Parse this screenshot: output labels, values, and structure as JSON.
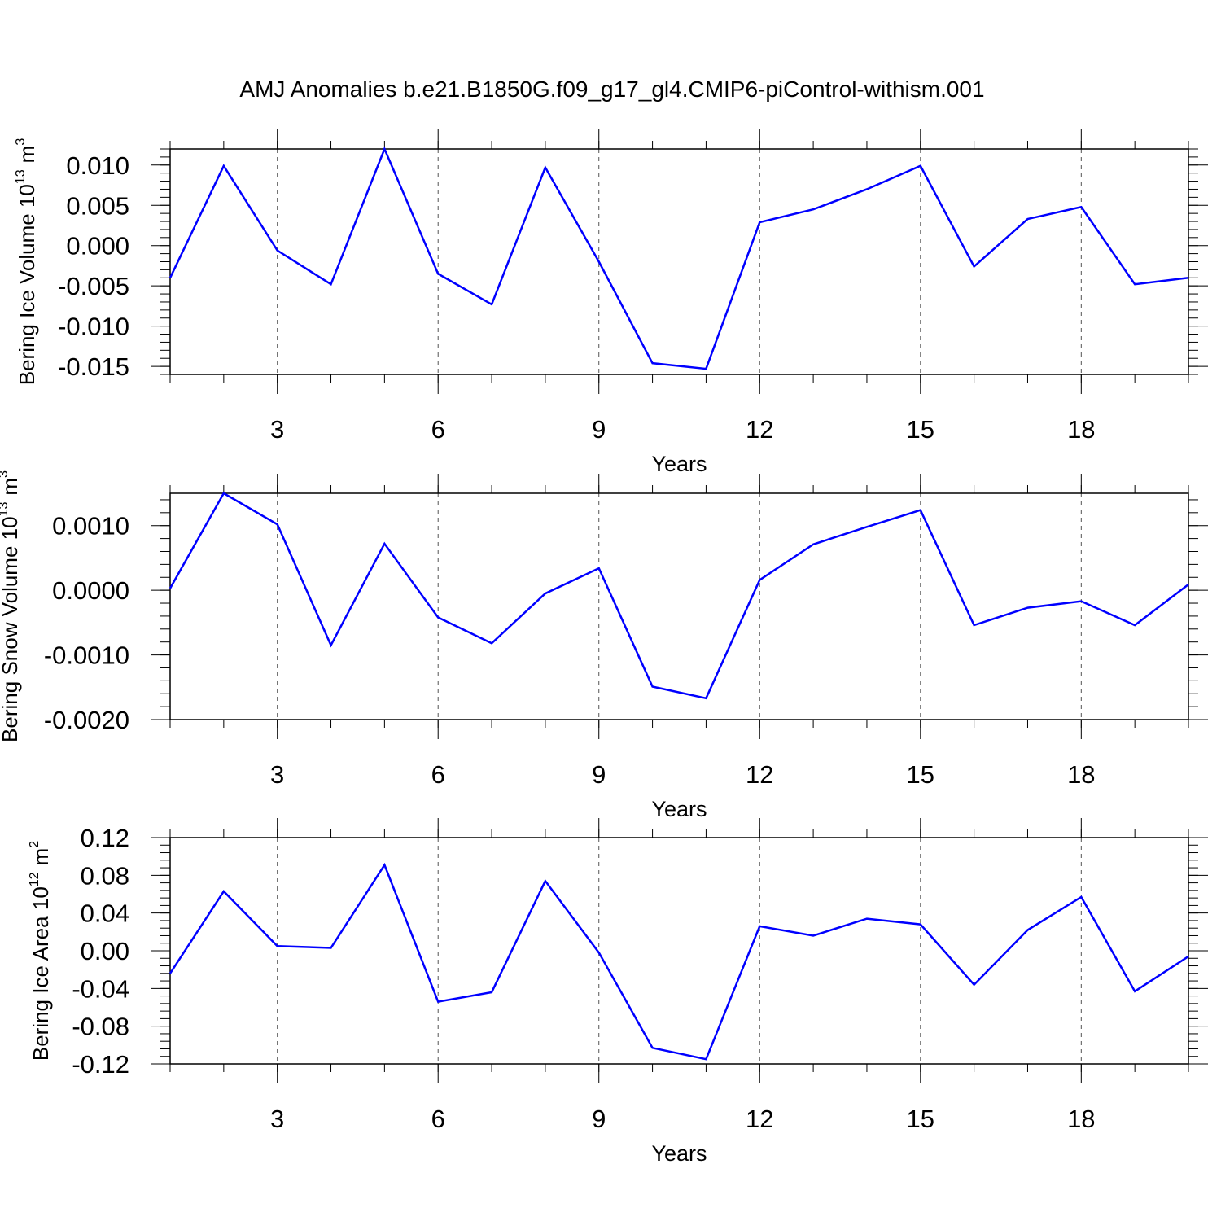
{
  "chart_data": [
    {
      "type": "line",
      "title": "AMJ Anomalies b.e21.B1850G.f09_g17_gl4.CMIP6-piControl-withism.001",
      "ylabel": [
        "Bering Ice Volume 10",
        "13",
        "m",
        "3"
      ],
      "xlabel": "Years",
      "x": [
        1,
        2,
        3,
        4,
        5,
        6,
        7,
        8,
        9,
        10,
        11,
        12,
        13,
        14,
        15,
        16,
        17,
        18,
        19,
        20
      ],
      "values": [
        -0.004,
        0.0099,
        -0.0006,
        -0.0048,
        0.012,
        -0.0035,
        -0.0073,
        0.0097,
        -0.002,
        -0.0146,
        -0.0153,
        0.0029,
        0.0045,
        0.007,
        0.0099,
        -0.0026,
        0.0033,
        0.0048,
        -0.0048,
        -0.004
      ],
      "color": "#0000ff",
      "xlim": [
        1,
        20
      ],
      "xticks": [
        3,
        6,
        9,
        12,
        15,
        18
      ],
      "ylim": [
        -0.016,
        0.012
      ],
      "yticks": [
        {
          "value": 0.01,
          "label": "0.010"
        },
        {
          "value": 0.005,
          "label": "0.005"
        },
        {
          "value": 0,
          "label": "0.000"
        },
        {
          "value": -0.005,
          "label": "-0.005"
        },
        {
          "value": -0.01,
          "label": "-0.010"
        },
        {
          "value": -0.015,
          "label": "-0.015"
        }
      ],
      "grid": true
    },
    {
      "type": "line",
      "ylabel": [
        "Bering Snow Volume 10",
        "13",
        "m",
        "3"
      ],
      "xlabel": "Years",
      "x": [
        1,
        2,
        3,
        4,
        5,
        6,
        7,
        8,
        9,
        10,
        11,
        12,
        13,
        14,
        15,
        16,
        17,
        18,
        19,
        20
      ],
      "values": [
        3e-05,
        0.0015,
        0.00102,
        -0.00085,
        0.00072,
        -0.00042,
        -0.00082,
        -5e-05,
        0.00034,
        -0.00149,
        -0.00167,
        0.00016,
        0.00071,
        0.00098,
        0.00124,
        -0.00054,
        -0.00027,
        -0.00017,
        -0.00054,
        9e-05
      ],
      "color": "#0000ff",
      "xlim": [
        1,
        20
      ],
      "xticks": [
        3,
        6,
        9,
        12,
        15,
        18
      ],
      "ylim": [
        -0.002,
        0.0015
      ],
      "yticks": [
        {
          "value": 0.001,
          "label": "0.0010"
        },
        {
          "value": 0,
          "label": "0.0000"
        },
        {
          "value": -0.001,
          "label": "-0.0010"
        },
        {
          "value": -0.002,
          "label": "-0.0020"
        }
      ],
      "grid": true
    },
    {
      "type": "line",
      "ylabel": [
        "Bering Ice Area 10",
        "12",
        "m",
        "2"
      ],
      "xlabel": "Years",
      "x": [
        1,
        2,
        3,
        4,
        5,
        6,
        7,
        8,
        9,
        10,
        11,
        12,
        13,
        14,
        15,
        16,
        17,
        18,
        19,
        20
      ],
      "values": [
        -0.024,
        0.063,
        0.005,
        0.003,
        0.091,
        -0.054,
        -0.044,
        0.074,
        -0.002,
        -0.103,
        -0.115,
        0.026,
        0.016,
        0.034,
        0.028,
        -0.036,
        0.022,
        0.057,
        -0.043,
        -0.006
      ],
      "color": "#0000ff",
      "xlim": [
        1,
        20
      ],
      "xticks": [
        3,
        6,
        9,
        12,
        15,
        18
      ],
      "ylim": [
        -0.12,
        0.12
      ],
      "yticks": [
        0.12,
        0.08,
        0.04,
        {
          "value": 0,
          "label": "0.00"
        },
        -0.04,
        -0.08,
        -0.12
      ],
      "grid": true
    }
  ]
}
